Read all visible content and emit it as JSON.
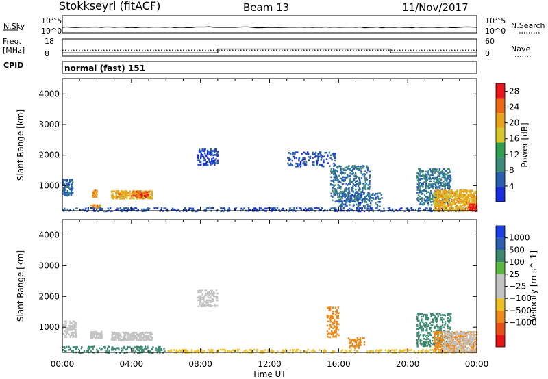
{
  "header": {
    "station": "Stokkseyri (fitACF)",
    "beam": "Beam 13",
    "date": "11/Nov/2017"
  },
  "strip": {
    "nsky_label": "N.Sky",
    "nsearch_label": "N.Search",
    "noise_ticks": [
      "10^5",
      "10^0"
    ],
    "freq_label": "Freq.",
    "freq_unit": "[MHz]",
    "cpid_label": "CPID",
    "freq_ticks": [
      "18",
      "8"
    ],
    "nave_label": "Nave",
    "nave_ticks": [
      "60",
      "0"
    ],
    "cpid_text": "normal (fast) 151"
  },
  "chart_data": [
    {
      "type": "line",
      "title": "",
      "series": [
        {
          "name": "N.Sky",
          "style": "solid",
          "values_log10": [
            1.6,
            1.6,
            1.7,
            1.6,
            1.6,
            1.6,
            1.6,
            1.6,
            1.7,
            1.6,
            1.6,
            1.6,
            1.6,
            1.6,
            1.6,
            1.6,
            1.6,
            1.6,
            1.6,
            1.6,
            1.6,
            1.6,
            1.6,
            1.6,
            1.6
          ]
        },
        {
          "name": "N.Search",
          "style": "dotted",
          "values_log10": []
        }
      ],
      "x_hours": [
        0,
        1,
        2,
        3,
        4,
        5,
        6,
        7,
        8,
        9,
        10,
        11,
        12,
        13,
        14,
        15,
        16,
        17,
        18,
        19,
        20,
        21,
        22,
        23,
        24
      ],
      "ylim_log10": [
        0,
        5
      ]
    },
    {
      "type": "line",
      "series": [
        {
          "name": "Freq.",
          "style": "solid",
          "segments": [
            {
              "start": 0,
              "end": 9,
              "value": 9.9
            },
            {
              "start": 9,
              "end": 19,
              "value": 12.2
            },
            {
              "start": 19,
              "end": 24,
              "value": 9.9
            }
          ]
        },
        {
          "name": "Nave",
          "style": "dotted",
          "segments": [
            {
              "start": 0,
              "end": 24,
              "value": 21
            }
          ]
        }
      ],
      "freq_ylim": [
        8,
        18
      ],
      "nave_ylim": [
        0,
        60
      ]
    },
    {
      "type": "heatmap",
      "ylabel": "Slant Range [km]",
      "colorbar_label": "Power [dB]",
      "yticks": [
        1000,
        2000,
        3000,
        4000
      ],
      "ylim": [
        180,
        4500
      ],
      "xlim": [
        0,
        24
      ],
      "colorbar_ticks": [
        4,
        8,
        12,
        16,
        20,
        24,
        28
      ],
      "colorbar_range": [
        0,
        30
      ],
      "patches": [
        {
          "t0": 0.0,
          "t1": 0.6,
          "r0": 700,
          "r1": 1250,
          "value": 6,
          "density": 0.55
        },
        {
          "t0": 1.7,
          "t1": 2.0,
          "r0": 650,
          "r1": 900,
          "value": 22,
          "density": 0.8
        },
        {
          "t0": 1.6,
          "t1": 2.2,
          "r0": 300,
          "r1": 420,
          "value": 21,
          "density": 0.8
        },
        {
          "t0": 2.8,
          "t1": 5.2,
          "r0": 600,
          "r1": 880,
          "value": 20,
          "density": 0.75
        },
        {
          "t0": 4.0,
          "t1": 5.0,
          "r0": 640,
          "r1": 860,
          "value": 25,
          "density": 0.6
        },
        {
          "t0": 0.0,
          "t1": 24.0,
          "r0": 190,
          "r1": 320,
          "value": 5,
          "density": 0.4
        },
        {
          "t0": 7.8,
          "t1": 9.0,
          "r0": 1700,
          "r1": 2250,
          "value": 4,
          "density": 0.5
        },
        {
          "t0": 13.0,
          "t1": 15.8,
          "r0": 1650,
          "r1": 2150,
          "value": 5,
          "density": 0.3
        },
        {
          "t0": 15.5,
          "t1": 17.8,
          "r0": 500,
          "r1": 1700,
          "value": 7,
          "density": 0.4
        },
        {
          "t0": 16.0,
          "t1": 18.5,
          "r0": 350,
          "r1": 800,
          "value": 6,
          "density": 0.35
        },
        {
          "t0": 20.5,
          "t1": 22.5,
          "r0": 400,
          "r1": 1600,
          "value": 8,
          "density": 0.5
        },
        {
          "t0": 21.5,
          "t1": 24.0,
          "r0": 200,
          "r1": 900,
          "value": 20,
          "density": 0.75
        },
        {
          "t0": 23.5,
          "t1": 24.0,
          "r0": 200,
          "r1": 450,
          "value": 28,
          "density": 0.9
        }
      ]
    },
    {
      "type": "heatmap",
      "xlabel": "Time UT",
      "ylabel": "Slant Range [km]",
      "colorbar_label": "Velocity [m s^-1]",
      "xticks": [
        "00:00",
        "04:00",
        "08:00",
        "12:00",
        "16:00",
        "20:00",
        "00:00"
      ],
      "yticks": [
        1000,
        2000,
        3000,
        4000
      ],
      "ylim": [
        180,
        4500
      ],
      "xlim": [
        0,
        24
      ],
      "colorbar_ticks": [
        "1000",
        "500",
        "100",
        "25",
        "−25",
        "−100",
        "−500",
        "−1000"
      ],
      "patches": [
        {
          "t0": 0.0,
          "t1": 0.8,
          "r0": 700,
          "r1": 1250,
          "value": 0,
          "density": 0.6
        },
        {
          "t0": 1.6,
          "t1": 2.3,
          "r0": 650,
          "r1": 900,
          "value": 0,
          "density": 0.8
        },
        {
          "t0": 2.8,
          "t1": 5.2,
          "r0": 600,
          "r1": 880,
          "value": 0,
          "density": 0.8
        },
        {
          "t0": 0.0,
          "t1": 6.0,
          "r0": 190,
          "r1": 420,
          "value": 150,
          "density": 0.4
        },
        {
          "t0": 6.0,
          "t1": 24.0,
          "r0": 190,
          "r1": 320,
          "value": -80,
          "density": 0.35
        },
        {
          "t0": 7.8,
          "t1": 9.0,
          "r0": 1700,
          "r1": 2250,
          "value": 0,
          "density": 0.5
        },
        {
          "t0": 15.3,
          "t1": 16.0,
          "r0": 700,
          "r1": 1700,
          "value": -400,
          "density": 0.5
        },
        {
          "t0": 16.5,
          "t1": 17.5,
          "r0": 350,
          "r1": 700,
          "value": -200,
          "density": 0.5
        },
        {
          "t0": 20.5,
          "t1": 22.5,
          "r0": 400,
          "r1": 1500,
          "value": 200,
          "density": 0.45
        },
        {
          "t0": 21.5,
          "t1": 24.0,
          "r0": 200,
          "r1": 900,
          "value": -150,
          "density": 0.6
        },
        {
          "t0": 22.0,
          "t1": 24.0,
          "r0": 200,
          "r1": 900,
          "value": 0,
          "density": 0.45
        }
      ]
    }
  ],
  "colors": {
    "power_scale": [
      "#1a2ee0",
      "#2a5fb0",
      "#3b8d7a",
      "#2fa04f",
      "#d7c72a",
      "#e9a21e",
      "#ec6a15",
      "#e8181b"
    ],
    "velocity_scale": [
      "#1d3fe6",
      "#2d5fb0",
      "#3c8a6e",
      "#59b83f",
      "#c3c3c3",
      "#c3c3c3",
      "#ecc023",
      "#ef8a1a",
      "#e8501a",
      "#e81515"
    ]
  }
}
